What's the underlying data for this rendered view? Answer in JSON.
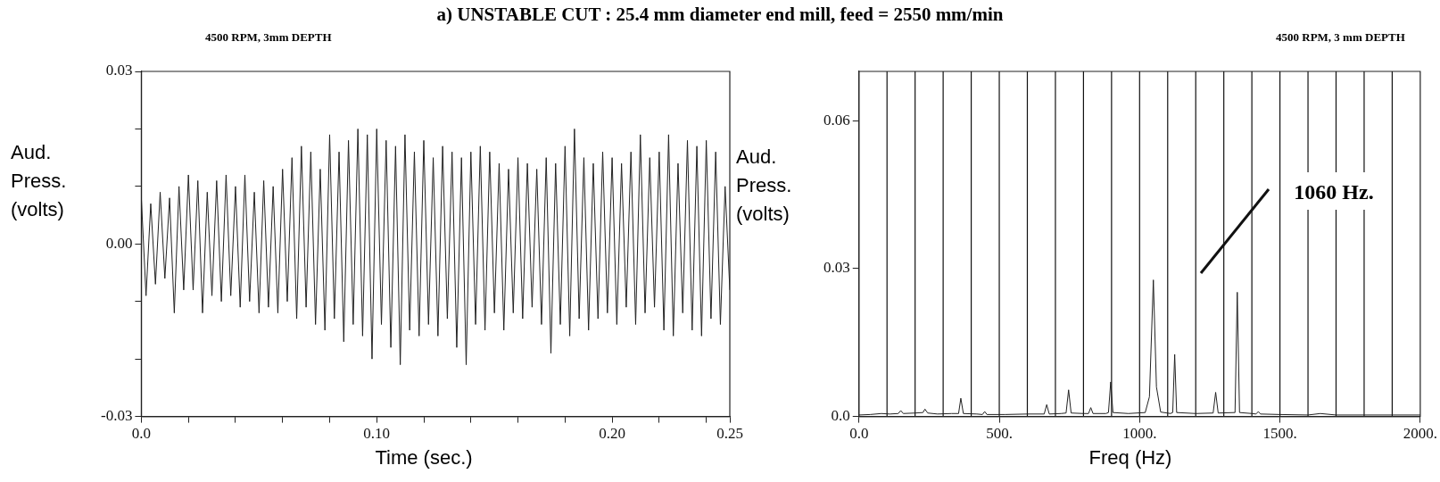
{
  "chart_data": [
    {
      "type": "line",
      "title": "a) UNSTABLE CUT : 25.4 mm diameter end mill, feed = 2550 mm/min",
      "subtitle": "4500 RPM, 3mm DEPTH",
      "xlabel": "Time (sec.)",
      "ylabel": "Aud. Press. (volts)",
      "xlim": [
        0,
        0.25
      ],
      "xticks": [
        {
          "value": 0,
          "label": "0.0"
        },
        {
          "value": 0.02,
          "label": null
        },
        {
          "value": 0.04,
          "label": null
        },
        {
          "value": 0.06,
          "label": null
        },
        {
          "value": 0.08,
          "label": null
        },
        {
          "value": 0.1,
          "label": "0.10"
        },
        {
          "value": 0.12,
          "label": null
        },
        {
          "value": 0.14,
          "label": null
        },
        {
          "value": 0.16,
          "label": null
        },
        {
          "value": 0.18,
          "label": null
        },
        {
          "value": 0.2,
          "label": "0.20"
        },
        {
          "value": 0.22,
          "label": null
        },
        {
          "value": 0.24,
          "label": null
        },
        {
          "value": 0.25,
          "label": "0.25"
        }
      ],
      "ylim": [
        -0.03,
        0.03
      ],
      "yticks": [
        {
          "value": -0.03,
          "label": "-0.03"
        },
        {
          "value": -0.02,
          "label": null
        },
        {
          "value": -0.01,
          "label": null
        },
        {
          "value": 0,
          "label": "0.00"
        },
        {
          "value": 0.01,
          "label": null
        },
        {
          "value": 0.02,
          "label": null
        },
        {
          "value": 0.03,
          "label": "0.03"
        }
      ],
      "grid": false,
      "legend": false,
      "marker": "none",
      "series": [
        {
          "color": "#222222",
          "x": [
            0,
            0.002,
            0.004,
            0.006,
            0.008,
            0.01,
            0.012,
            0.014,
            0.016,
            0.018,
            0.02,
            0.022,
            0.024,
            0.026,
            0.028,
            0.03,
            0.032,
            0.034,
            0.036,
            0.038,
            0.04,
            0.042,
            0.044,
            0.046,
            0.048,
            0.05,
            0.052,
            0.054,
            0.056,
            0.058,
            0.06,
            0.062,
            0.064,
            0.066,
            0.068,
            0.07,
            0.072,
            0.074,
            0.076,
            0.078,
            0.08,
            0.082,
            0.084,
            0.086,
            0.088,
            0.09,
            0.092,
            0.094,
            0.096,
            0.098,
            0.1,
            0.102,
            0.104,
            0.106,
            0.108,
            0.11,
            0.112,
            0.114,
            0.116,
            0.118,
            0.12,
            0.122,
            0.124,
            0.126,
            0.128,
            0.13,
            0.132,
            0.134,
            0.136,
            0.138,
            0.14,
            0.142,
            0.144,
            0.146,
            0.148,
            0.15,
            0.152,
            0.154,
            0.156,
            0.158,
            0.16,
            0.162,
            0.164,
            0.166,
            0.168,
            0.17,
            0.172,
            0.174,
            0.176,
            0.178,
            0.18,
            0.182,
            0.184,
            0.186,
            0.188,
            0.19,
            0.192,
            0.194,
            0.196,
            0.198,
            0.2,
            0.202,
            0.204,
            0.206,
            0.208,
            0.21,
            0.212,
            0.214,
            0.216,
            0.218,
            0.22,
            0.222,
            0.224,
            0.226,
            0.228,
            0.23,
            0.232,
            0.234,
            0.236,
            0.238,
            0.24,
            0.242,
            0.244,
            0.246,
            0.248,
            0.25
          ],
          "values": [
            0.008,
            -0.009,
            0.007,
            -0.007,
            0.009,
            -0.006,
            0.008,
            -0.012,
            0.01,
            -0.008,
            0.012,
            -0.008,
            0.011,
            -0.012,
            0.009,
            -0.009,
            0.011,
            -0.01,
            0.012,
            -0.009,
            0.01,
            -0.011,
            0.012,
            -0.01,
            0.009,
            -0.012,
            0.011,
            -0.011,
            0.01,
            -0.012,
            0.013,
            -0.01,
            0.015,
            -0.013,
            0.017,
            -0.011,
            0.016,
            -0.014,
            0.013,
            -0.015,
            0.019,
            -0.013,
            0.016,
            -0.017,
            0.018,
            -0.014,
            0.02,
            -0.016,
            0.019,
            -0.02,
            0.02,
            -0.014,
            0.018,
            -0.018,
            0.017,
            -0.021,
            0.019,
            -0.015,
            0.016,
            -0.016,
            0.018,
            -0.014,
            0.015,
            -0.016,
            0.017,
            -0.013,
            0.016,
            -0.018,
            0.015,
            -0.021,
            0.016,
            -0.014,
            0.017,
            -0.015,
            0.016,
            -0.012,
            0.014,
            -0.015,
            0.013,
            -0.012,
            0.015,
            -0.013,
            0.014,
            -0.011,
            0.013,
            -0.014,
            0.015,
            -0.019,
            0.014,
            -0.014,
            0.017,
            -0.016,
            0.02,
            -0.013,
            0.015,
            -0.015,
            0.014,
            -0.013,
            0.016,
            -0.012,
            0.015,
            -0.014,
            0.014,
            -0.011,
            0.016,
            -0.014,
            0.019,
            -0.012,
            0.015,
            -0.011,
            0.016,
            -0.015,
            0.019,
            -0.016,
            0.014,
            -0.012,
            0.018,
            -0.015,
            0.017,
            -0.016,
            0.018,
            -0.013,
            0.016,
            -0.014,
            0.01,
            -0.008
          ]
        }
      ]
    },
    {
      "type": "line",
      "subtitle": "4500 RPM, 3 mm DEPTH",
      "xlabel": "Freq (Hz)",
      "ylabel": "Aud. Press. (volts)",
      "xlim": [
        0,
        2000
      ],
      "xticks": [
        {
          "value": 0,
          "label": "0.0"
        },
        {
          "value": 500,
          "label": "500."
        },
        {
          "value": 1000,
          "label": "1000."
        },
        {
          "value": 1500,
          "label": "1500."
        },
        {
          "value": 2000,
          "label": "2000."
        }
      ],
      "ylim": [
        0,
        0.07
      ],
      "yticks": [
        {
          "value": 0,
          "label": "0.0"
        },
        {
          "value": 0.03,
          "label": "0.03"
        },
        {
          "value": 0.06,
          "label": "0.06"
        }
      ],
      "grid": false,
      "legend": false,
      "marker": "none",
      "ref_lines": [
        {
          "axis": "x",
          "value": 100,
          "color": "#111111"
        },
        {
          "axis": "x",
          "value": 200,
          "color": "#111111"
        },
        {
          "axis": "x",
          "value": 300,
          "color": "#111111"
        },
        {
          "axis": "x",
          "value": 400,
          "color": "#111111"
        },
        {
          "axis": "x",
          "value": 500,
          "color": "#111111"
        },
        {
          "axis": "x",
          "value": 600,
          "color": "#111111"
        },
        {
          "axis": "x",
          "value": 700,
          "color": "#111111"
        },
        {
          "axis": "x",
          "value": 800,
          "color": "#111111"
        },
        {
          "axis": "x",
          "value": 900,
          "color": "#111111"
        },
        {
          "axis": "x",
          "value": 1000,
          "color": "#111111"
        },
        {
          "axis": "x",
          "value": 1100,
          "color": "#111111"
        },
        {
          "axis": "x",
          "value": 1200,
          "color": "#111111"
        },
        {
          "axis": "x",
          "value": 1300,
          "color": "#111111"
        },
        {
          "axis": "x",
          "value": 1400,
          "color": "#111111"
        },
        {
          "axis": "x",
          "value": 1500,
          "color": "#111111"
        },
        {
          "axis": "x",
          "value": 1600,
          "color": "#111111"
        },
        {
          "axis": "x",
          "value": 1700,
          "color": "#111111"
        },
        {
          "axis": "x",
          "value": 1800,
          "color": "#111111"
        },
        {
          "axis": "x",
          "value": 1900,
          "color": "#111111"
        }
      ],
      "annotations": [
        "1060 Hz."
      ],
      "series": [
        {
          "color": "#222222",
          "x": [
            0,
            40,
            80,
            110,
            140,
            149,
            158,
            200,
            228,
            235,
            245,
            280,
            330,
            355,
            363,
            372,
            420,
            440,
            448,
            456,
            520,
            600,
            660,
            669,
            678,
            720,
            738,
            747,
            756,
            800,
            818,
            826,
            834,
            880,
            889,
            897,
            905,
            960,
            1020,
            1035,
            1049,
            1060,
            1075,
            1110,
            1118,
            1125,
            1132,
            1200,
            1262,
            1271,
            1280,
            1340,
            1348,
            1356,
            1400,
            1415,
            1423,
            1431,
            1500,
            1600,
            1644,
            1700,
            1800,
            1900,
            2000
          ],
          "values": [
            0.0003,
            0.0004,
            0.0006,
            0.0005,
            0.0006,
            0.0012,
            0.0006,
            0.0007,
            0.0008,
            0.0015,
            0.0007,
            0.0005,
            0.0006,
            0.0006,
            0.0037,
            0.0006,
            0.0005,
            0.0004,
            0.001,
            0.0004,
            0.0004,
            0.0005,
            0.0005,
            0.0024,
            0.0005,
            0.0006,
            0.0007,
            0.0054,
            0.0007,
            0.0006,
            0.0006,
            0.0018,
            0.0006,
            0.0006,
            0.0008,
            0.007,
            0.0008,
            0.0006,
            0.0008,
            0.004,
            0.0277,
            0.006,
            0.0009,
            0.0006,
            0.0008,
            0.0126,
            0.0008,
            0.0006,
            0.0007,
            0.0049,
            0.0007,
            0.0008,
            0.0252,
            0.0008,
            0.0006,
            0.0005,
            0.001,
            0.0005,
            0.0004,
            0.0003,
            0.0006,
            0.0003,
            0.0003,
            0.0003,
            0.0003
          ]
        }
      ]
    }
  ]
}
